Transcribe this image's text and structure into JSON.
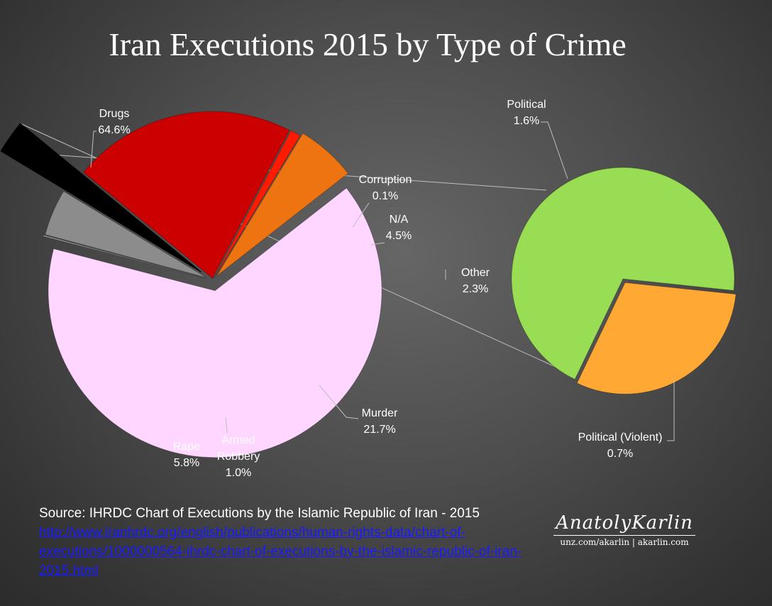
{
  "chart_data": {
    "type": "bar-of-pie",
    "title": "Iran Executions 2015 by Type of Crime",
    "main_pie": {
      "slices": [
        {
          "label": "Drugs",
          "pct": "64.6%",
          "value": 64.6,
          "color": "#ffd6ff"
        },
        {
          "label": "Corruption",
          "pct": "0.1%",
          "value": 0.1,
          "color": "#b0b0b0"
        },
        {
          "label": "N/A",
          "pct": "4.5%",
          "value": 4.5,
          "color": "#8c8c8c"
        },
        {
          "label": "Other",
          "pct": "2.3%",
          "value": 2.3,
          "color": "#000000"
        },
        {
          "label": "Murder",
          "pct": "21.7%",
          "value": 21.7,
          "color": "#cc0000"
        },
        {
          "label": "Armed\nRobbery",
          "pct": "1.0%",
          "value": 1.0,
          "color": "#ff1a00"
        },
        {
          "label": "Rape",
          "pct": "5.8%",
          "value": 5.8,
          "color": "#ee7411"
        }
      ]
    },
    "secondary_pie": {
      "slices": [
        {
          "label": "Political",
          "pct": "1.6%",
          "value": 1.6,
          "color": "#99dd55"
        },
        {
          "label": "Political (Violent)",
          "pct": "0.7%",
          "value": 0.7,
          "color": "#ffa833"
        }
      ]
    }
  },
  "source": {
    "text": "Source: IHRDC Chart of Executions by the Islamic Republic of Iran - 2015",
    "link": "http://www.iranhrdc.org/english/publications/human-rights-data/chart-of-executions/1000000564-ihrdc-chart-of-executions-by-the-islamic-republic-of-iran-2015.html"
  },
  "signature": {
    "name": "AnatolyKarlin",
    "sub": "unz.com/akarlin | akarlin.com"
  }
}
